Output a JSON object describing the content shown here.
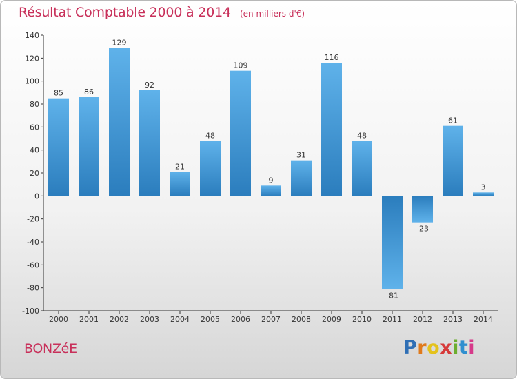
{
  "chart_data": {
    "type": "bar",
    "title": "Résultat Comptable 2000 à 2014",
    "subtitle": "(en milliers d'€)",
    "categories": [
      "2000",
      "2001",
      "2002",
      "2003",
      "2004",
      "2005",
      "2006",
      "2007",
      "2008",
      "2009",
      "2010",
      "2011",
      "2012",
      "2013",
      "2014"
    ],
    "values": [
      85,
      86,
      129,
      92,
      21,
      48,
      109,
      9,
      31,
      116,
      48,
      -81,
      -23,
      61,
      3
    ],
    "data_labels": [
      "85",
      "86",
      "129",
      "92",
      "21",
      "48",
      "109",
      "9",
      "31",
      "116",
      "48",
      "-81",
      "-23",
      "61",
      "3"
    ],
    "ylim": [
      -100,
      140
    ],
    "yticks": [
      -100,
      -80,
      -60,
      -40,
      -20,
      0,
      20,
      40,
      60,
      80,
      100,
      120,
      140
    ],
    "ytick_labels": [
      "-100",
      "-80",
      "-60",
      "-40",
      "-20",
      "0",
      "20",
      "40",
      "60",
      "80",
      "100",
      "120",
      "140"
    ],
    "xlabel": "",
    "ylabel": "",
    "grid": false,
    "bar_colors": {
      "light": "#5aaee6",
      "dark": "#2b7dbd"
    }
  },
  "place": "BONZéE",
  "logo": {
    "letters": [
      "P",
      "r",
      "o",
      "x",
      "i",
      "t",
      "i"
    ],
    "colors": [
      "#2f6fb5",
      "#e07a1c",
      "#e4c21c",
      "#d63a3a",
      "#6cad2e",
      "#2f8fcf",
      "#d63a8a"
    ]
  }
}
